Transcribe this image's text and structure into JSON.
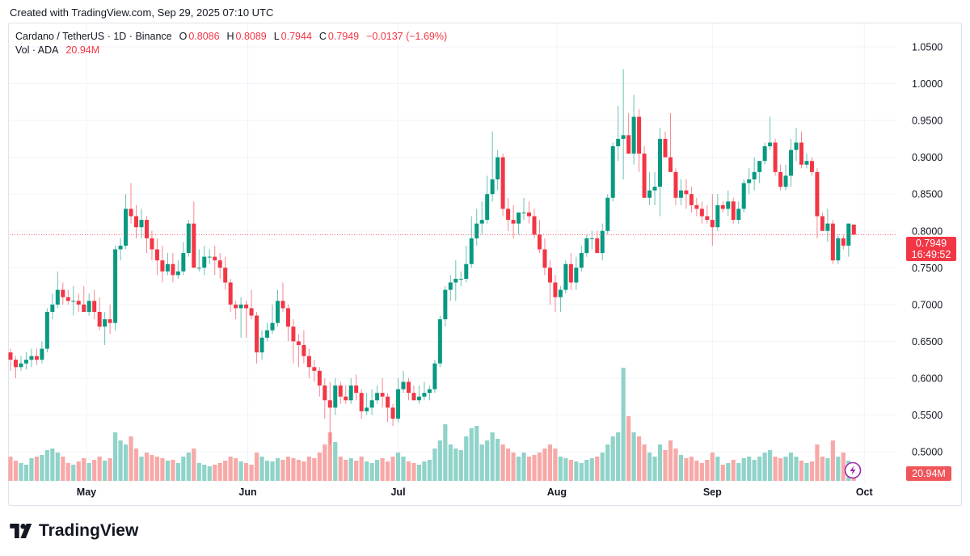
{
  "header": {
    "created": "Created with TradingView.com, Sep 29, 2025 07:10 UTC"
  },
  "legend": {
    "symbol": "Cardano / TetherUS · 1D · Binance",
    "o_label": "O",
    "o": "0.8086",
    "h_label": "H",
    "h": "0.8089",
    "l_label": "L",
    "l": "0.7944",
    "c_label": "C",
    "c": "0.7949",
    "change": "−0.0137 (−1.69%)",
    "vol_label": "Vol · ADA",
    "vol": "20.94M"
  },
  "price_tag": {
    "price": "0.7949",
    "countdown": "16:49:52"
  },
  "volume_tag": "20.94M",
  "logo": "TradingView",
  "colors": {
    "up": "#089981",
    "down": "#f23645",
    "vol_up": "#8fd3c9",
    "vol_down": "#f7a9a7"
  },
  "chart_data": {
    "type": "candlestick",
    "title": "Cardano / TetherUS · 1D · Binance",
    "y_ticks": [
      "1.0500",
      "1.0000",
      "0.9500",
      "0.9000",
      "0.8500",
      "0.8000",
      "0.7500",
      "0.7000",
      "0.6500",
      "0.6000",
      "0.5500",
      "0.5000"
    ],
    "ylim": [
      0.5,
      1.05
    ],
    "x_ticks": [
      {
        "label": "May",
        "index": 14.5
      },
      {
        "label": "Jun",
        "index": 45.3
      },
      {
        "label": "Jul",
        "index": 74.0
      },
      {
        "label": "Aug",
        "index": 104.3
      },
      {
        "label": "Sep",
        "index": 134.0
      },
      {
        "label": "Oct",
        "index": 163.0
      }
    ],
    "columns": [
      "open",
      "high",
      "low",
      "close",
      "volume_M"
    ],
    "candles": [
      [
        0.635,
        0.64,
        0.61,
        0.625,
        30
      ],
      [
        0.625,
        0.63,
        0.6,
        0.615,
        25
      ],
      [
        0.615,
        0.63,
        0.61,
        0.62,
        22
      ],
      [
        0.62,
        0.635,
        0.612,
        0.625,
        20
      ],
      [
        0.625,
        0.64,
        0.615,
        0.63,
        28
      ],
      [
        0.63,
        0.64,
        0.618,
        0.625,
        30
      ],
      [
        0.625,
        0.65,
        0.62,
        0.64,
        32
      ],
      [
        0.64,
        0.695,
        0.635,
        0.69,
        38
      ],
      [
        0.69,
        0.715,
        0.68,
        0.7,
        40
      ],
      [
        0.7,
        0.745,
        0.695,
        0.72,
        35
      ],
      [
        0.72,
        0.73,
        0.7,
        0.71,
        30
      ],
      [
        0.71,
        0.72,
        0.7,
        0.705,
        22
      ],
      [
        0.705,
        0.725,
        0.685,
        0.705,
        20
      ],
      [
        0.705,
        0.715,
        0.69,
        0.7,
        24
      ],
      [
        0.7,
        0.725,
        0.69,
        0.69,
        28
      ],
      [
        0.69,
        0.715,
        0.685,
        0.705,
        22
      ],
      [
        0.705,
        0.72,
        0.68,
        0.69,
        26
      ],
      [
        0.69,
        0.71,
        0.665,
        0.67,
        30
      ],
      [
        0.67,
        0.69,
        0.645,
        0.68,
        25
      ],
      [
        0.68,
        0.7,
        0.66,
        0.675,
        28
      ],
      [
        0.675,
        0.78,
        0.665,
        0.775,
        60
      ],
      [
        0.775,
        0.79,
        0.76,
        0.78,
        50
      ],
      [
        0.78,
        0.85,
        0.775,
        0.83,
        45
      ],
      [
        0.83,
        0.865,
        0.81,
        0.82,
        55
      ],
      [
        0.82,
        0.835,
        0.79,
        0.805,
        40
      ],
      [
        0.805,
        0.83,
        0.79,
        0.815,
        30
      ],
      [
        0.815,
        0.82,
        0.77,
        0.79,
        35
      ],
      [
        0.79,
        0.8,
        0.76,
        0.775,
        32
      ],
      [
        0.775,
        0.79,
        0.74,
        0.76,
        30
      ],
      [
        0.76,
        0.78,
        0.73,
        0.745,
        28
      ],
      [
        0.745,
        0.77,
        0.74,
        0.755,
        25
      ],
      [
        0.755,
        0.77,
        0.73,
        0.74,
        26
      ],
      [
        0.74,
        0.76,
        0.735,
        0.745,
        22
      ],
      [
        0.745,
        0.785,
        0.74,
        0.77,
        30
      ],
      [
        0.77,
        0.815,
        0.765,
        0.81,
        35
      ],
      [
        0.81,
        0.84,
        0.755,
        0.75,
        40
      ],
      [
        0.75,
        0.775,
        0.745,
        0.75,
        22
      ],
      [
        0.75,
        0.78,
        0.74,
        0.765,
        20
      ],
      [
        0.765,
        0.775,
        0.755,
        0.765,
        18
      ],
      [
        0.765,
        0.78,
        0.74,
        0.76,
        20
      ],
      [
        0.76,
        0.77,
        0.735,
        0.75,
        22
      ],
      [
        0.75,
        0.765,
        0.72,
        0.73,
        25
      ],
      [
        0.73,
        0.735,
        0.69,
        0.7,
        30
      ],
      [
        0.7,
        0.705,
        0.68,
        0.695,
        28
      ],
      [
        0.695,
        0.71,
        0.655,
        0.7,
        24
      ],
      [
        0.7,
        0.705,
        0.655,
        0.695,
        22
      ],
      [
        0.695,
        0.72,
        0.68,
        0.685,
        20
      ],
      [
        0.685,
        0.69,
        0.62,
        0.635,
        35
      ],
      [
        0.635,
        0.665,
        0.625,
        0.655,
        30
      ],
      [
        0.655,
        0.675,
        0.65,
        0.665,
        25
      ],
      [
        0.665,
        0.7,
        0.66,
        0.675,
        24
      ],
      [
        0.675,
        0.72,
        0.67,
        0.705,
        28
      ],
      [
        0.705,
        0.73,
        0.69,
        0.695,
        26
      ],
      [
        0.695,
        0.7,
        0.65,
        0.67,
        30
      ],
      [
        0.67,
        0.68,
        0.62,
        0.65,
        28
      ],
      [
        0.65,
        0.66,
        0.615,
        0.645,
        26
      ],
      [
        0.645,
        0.665,
        0.62,
        0.63,
        24
      ],
      [
        0.63,
        0.64,
        0.6,
        0.615,
        30
      ],
      [
        0.615,
        0.625,
        0.595,
        0.61,
        28
      ],
      [
        0.61,
        0.615,
        0.575,
        0.59,
        35
      ],
      [
        0.59,
        0.6,
        0.545,
        0.57,
        45
      ],
      [
        0.57,
        0.595,
        0.51,
        0.56,
        60
      ],
      [
        0.56,
        0.6,
        0.55,
        0.59,
        48
      ],
      [
        0.59,
        0.595,
        0.565,
        0.575,
        30
      ],
      [
        0.575,
        0.59,
        0.565,
        0.57,
        26
      ],
      [
        0.57,
        0.6,
        0.565,
        0.59,
        28
      ],
      [
        0.59,
        0.605,
        0.57,
        0.58,
        25
      ],
      [
        0.58,
        0.585,
        0.545,
        0.555,
        30
      ],
      [
        0.555,
        0.58,
        0.55,
        0.56,
        24
      ],
      [
        0.56,
        0.585,
        0.55,
        0.57,
        22
      ],
      [
        0.57,
        0.59,
        0.565,
        0.58,
        26
      ],
      [
        0.58,
        0.6,
        0.56,
        0.575,
        28
      ],
      [
        0.575,
        0.58,
        0.54,
        0.56,
        24
      ],
      [
        0.56,
        0.565,
        0.535,
        0.545,
        30
      ],
      [
        0.545,
        0.6,
        0.54,
        0.585,
        35
      ],
      [
        0.585,
        0.61,
        0.58,
        0.595,
        30
      ],
      [
        0.595,
        0.6,
        0.57,
        0.58,
        24
      ],
      [
        0.58,
        0.59,
        0.57,
        0.57,
        22
      ],
      [
        0.57,
        0.59,
        0.565,
        0.575,
        20
      ],
      [
        0.575,
        0.595,
        0.57,
        0.58,
        24
      ],
      [
        0.58,
        0.59,
        0.57,
        0.585,
        26
      ],
      [
        0.585,
        0.625,
        0.58,
        0.62,
        40
      ],
      [
        0.62,
        0.685,
        0.615,
        0.68,
        50
      ],
      [
        0.68,
        0.725,
        0.67,
        0.72,
        70
      ],
      [
        0.72,
        0.74,
        0.705,
        0.73,
        45
      ],
      [
        0.73,
        0.76,
        0.705,
        0.735,
        40
      ],
      [
        0.735,
        0.745,
        0.725,
        0.735,
        38
      ],
      [
        0.735,
        0.78,
        0.73,
        0.755,
        55
      ],
      [
        0.755,
        0.82,
        0.75,
        0.79,
        65
      ],
      [
        0.79,
        0.83,
        0.78,
        0.81,
        68
      ],
      [
        0.81,
        0.84,
        0.795,
        0.815,
        45
      ],
      [
        0.815,
        0.875,
        0.81,
        0.85,
        50
      ],
      [
        0.85,
        0.935,
        0.84,
        0.87,
        60
      ],
      [
        0.87,
        0.91,
        0.855,
        0.9,
        52
      ],
      [
        0.9,
        0.905,
        0.82,
        0.83,
        45
      ],
      [
        0.83,
        0.845,
        0.8,
        0.815,
        40
      ],
      [
        0.815,
        0.835,
        0.79,
        0.81,
        35
      ],
      [
        0.81,
        0.825,
        0.795,
        0.825,
        30
      ],
      [
        0.825,
        0.845,
        0.815,
        0.825,
        35
      ],
      [
        0.825,
        0.84,
        0.81,
        0.82,
        30
      ],
      [
        0.82,
        0.83,
        0.79,
        0.795,
        32
      ],
      [
        0.795,
        0.815,
        0.77,
        0.775,
        35
      ],
      [
        0.775,
        0.79,
        0.74,
        0.75,
        40
      ],
      [
        0.75,
        0.76,
        0.7,
        0.73,
        45
      ],
      [
        0.73,
        0.74,
        0.69,
        0.71,
        40
      ],
      [
        0.71,
        0.725,
        0.69,
        0.72,
        30
      ],
      [
        0.72,
        0.76,
        0.715,
        0.755,
        28
      ],
      [
        0.755,
        0.77,
        0.72,
        0.73,
        26
      ],
      [
        0.73,
        0.765,
        0.72,
        0.75,
        24
      ],
      [
        0.75,
        0.78,
        0.745,
        0.77,
        22
      ],
      [
        0.77,
        0.795,
        0.765,
        0.79,
        26
      ],
      [
        0.79,
        0.8,
        0.775,
        0.79,
        28
      ],
      [
        0.79,
        0.8,
        0.77,
        0.77,
        30
      ],
      [
        0.77,
        0.81,
        0.76,
        0.8,
        35
      ],
      [
        0.8,
        0.85,
        0.795,
        0.845,
        45
      ],
      [
        0.845,
        0.92,
        0.84,
        0.915,
        55
      ],
      [
        0.915,
        0.97,
        0.895,
        0.925,
        60
      ],
      [
        0.925,
        1.02,
        0.87,
        0.93,
        140
      ],
      [
        0.93,
        0.96,
        0.905,
        0.905,
        80
      ],
      [
        0.905,
        0.985,
        0.89,
        0.955,
        60
      ],
      [
        0.955,
        0.965,
        0.88,
        0.905,
        55
      ],
      [
        0.905,
        0.915,
        0.845,
        0.845,
        45
      ],
      [
        0.845,
        0.88,
        0.835,
        0.855,
        35
      ],
      [
        0.855,
        0.88,
        0.835,
        0.86,
        30
      ],
      [
        0.86,
        0.94,
        0.82,
        0.925,
        45
      ],
      [
        0.925,
        0.935,
        0.9,
        0.9,
        38
      ],
      [
        0.9,
        0.96,
        0.88,
        0.88,
        50
      ],
      [
        0.88,
        0.885,
        0.835,
        0.845,
        40
      ],
      [
        0.845,
        0.87,
        0.835,
        0.855,
        32
      ],
      [
        0.855,
        0.87,
        0.83,
        0.85,
        28
      ],
      [
        0.85,
        0.86,
        0.825,
        0.835,
        30
      ],
      [
        0.835,
        0.845,
        0.82,
        0.83,
        25
      ],
      [
        0.83,
        0.84,
        0.81,
        0.82,
        22
      ],
      [
        0.82,
        0.835,
        0.81,
        0.815,
        26
      ],
      [
        0.815,
        0.85,
        0.78,
        0.805,
        35
      ],
      [
        0.805,
        0.85,
        0.8,
        0.835,
        30
      ],
      [
        0.835,
        0.84,
        0.825,
        0.83,
        20
      ],
      [
        0.83,
        0.855,
        0.82,
        0.84,
        22
      ],
      [
        0.84,
        0.845,
        0.81,
        0.815,
        26
      ],
      [
        0.815,
        0.84,
        0.81,
        0.83,
        22
      ],
      [
        0.83,
        0.87,
        0.825,
        0.865,
        28
      ],
      [
        0.865,
        0.885,
        0.85,
        0.87,
        30
      ],
      [
        0.87,
        0.9,
        0.855,
        0.88,
        26
      ],
      [
        0.88,
        0.895,
        0.865,
        0.895,
        30
      ],
      [
        0.895,
        0.92,
        0.89,
        0.915,
        35
      ],
      [
        0.915,
        0.955,
        0.91,
        0.92,
        38
      ],
      [
        0.92,
        0.925,
        0.875,
        0.88,
        30
      ],
      [
        0.88,
        0.89,
        0.855,
        0.86,
        28
      ],
      [
        0.86,
        0.89,
        0.855,
        0.875,
        30
      ],
      [
        0.875,
        0.925,
        0.86,
        0.91,
        35
      ],
      [
        0.91,
        0.94,
        0.895,
        0.92,
        30
      ],
      [
        0.92,
        0.935,
        0.885,
        0.89,
        25
      ],
      [
        0.89,
        0.905,
        0.885,
        0.895,
        22
      ],
      [
        0.895,
        0.9,
        0.875,
        0.88,
        24
      ],
      [
        0.88,
        0.885,
        0.79,
        0.82,
        45
      ],
      [
        0.82,
        0.825,
        0.8,
        0.8,
        30
      ],
      [
        0.8,
        0.83,
        0.785,
        0.81,
        28
      ],
      [
        0.81,
        0.815,
        0.755,
        0.76,
        50
      ],
      [
        0.76,
        0.795,
        0.755,
        0.79,
        30
      ],
      [
        0.79,
        0.795,
        0.775,
        0.78,
        35
      ],
      [
        0.78,
        0.81,
        0.765,
        0.81,
        25
      ],
      [
        0.8086,
        0.8089,
        0.7944,
        0.7949,
        20.94
      ]
    ],
    "last_price": 0.7949
  }
}
